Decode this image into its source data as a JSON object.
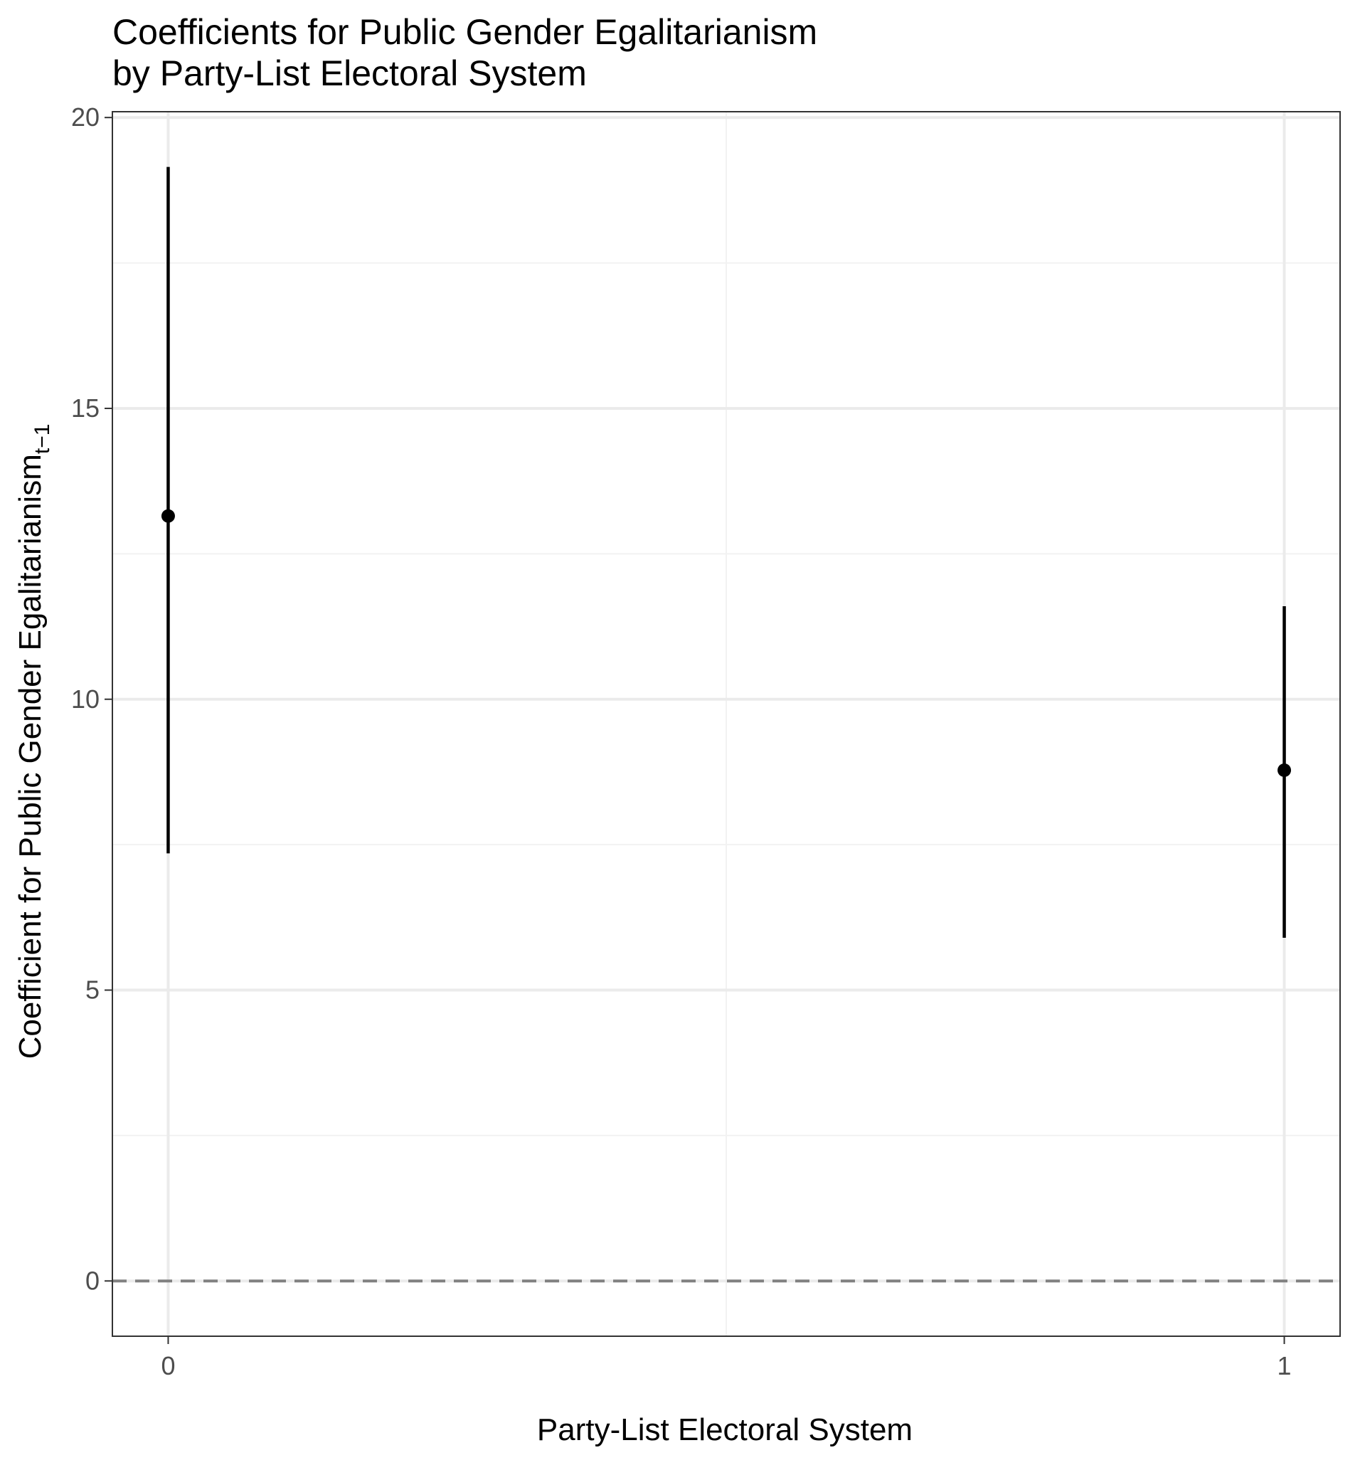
{
  "chart_data": {
    "type": "scatter",
    "title_line1": "Coefficients for Public Gender Egalitarianism",
    "title_line2": "by Party-List Electoral System",
    "xlabel": "Party-List Electoral System",
    "ylabel_main": "Coefficient for Public Gender Egalitarianism",
    "ylabel_subscript": "t−1",
    "x_tick_labels": [
      "0",
      "1"
    ],
    "y_tick_labels": [
      "0",
      "5",
      "10",
      "15",
      "20"
    ],
    "x": [
      0,
      1
    ],
    "y": [
      13.15,
      8.78
    ],
    "ci_lower": [
      7.35,
      5.9
    ],
    "ci_upper": [
      19.15,
      11.6
    ],
    "xlim": [
      -0.05,
      1.05
    ],
    "ylim": [
      -0.95,
      20.1
    ],
    "reference_line": {
      "y": 0,
      "style": "dashed",
      "color": "#808080"
    },
    "grid": true,
    "colors": {
      "point": "#000000",
      "panel_border": "#333333",
      "grid_major": "#ebebeb",
      "grid_minor": "#f2f2f2",
      "tick_text": "#4d4d4d"
    }
  }
}
